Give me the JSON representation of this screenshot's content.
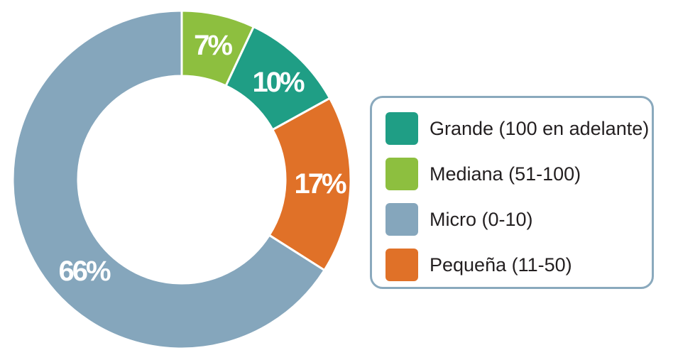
{
  "chart_data": {
    "type": "pie",
    "variant": "donut",
    "slices": [
      {
        "label": "Mediana (51-100)",
        "value": 7,
        "display": "7%",
        "color": "#8dbf3f"
      },
      {
        "label": "Grande (100 en adelante)",
        "value": 10,
        "display": "10%",
        "color": "#1f9e85"
      },
      {
        "label": "Pequeña (11-50)",
        "value": 17,
        "display": "17%",
        "color": "#e07128"
      },
      {
        "label": "Micro (0-10)",
        "value": 66,
        "display": "66%",
        "color": "#85a6bc"
      }
    ],
    "legend": {
      "placement": "right",
      "border_color": "#8aa9bd",
      "items": [
        {
          "label": "Grande (100 en adelante)",
          "color": "#1f9e85"
        },
        {
          "label": "Mediana (51-100)",
          "color": "#8dbf3f"
        },
        {
          "label": "Micro (0-10)",
          "color": "#85a6bc"
        },
        {
          "label": "Pequeña (11-50)",
          "color": "#e07128"
        }
      ]
    }
  }
}
